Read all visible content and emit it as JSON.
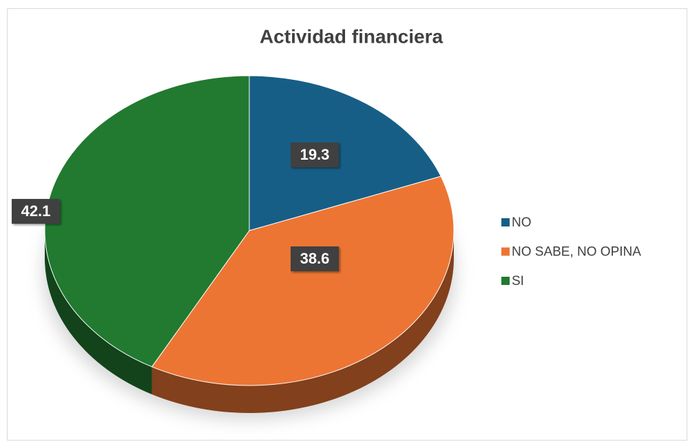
{
  "chart_data": {
    "type": "pie",
    "title": "Actividad financiera",
    "categories": [
      "NO",
      "NO SABE, NO OPINA",
      "SI"
    ],
    "values": [
      19.3,
      38.6,
      42.1
    ],
    "colors": [
      "#175e86",
      "#ed7533",
      "#217a30"
    ],
    "legend": "right"
  }
}
